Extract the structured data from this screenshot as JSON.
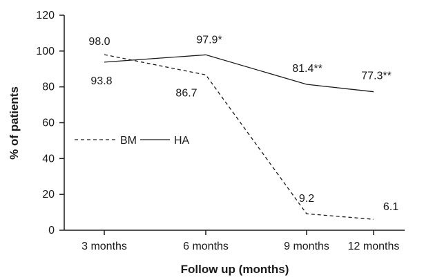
{
  "chart_data": {
    "type": "line",
    "xlabel": "Follow up (months)",
    "ylabel": "% of patients",
    "categories": [
      "3 months",
      "6 months",
      "9 months",
      "12 months"
    ],
    "ylim": [
      0,
      120
    ],
    "yticks": [
      "0",
      "20",
      "40",
      "60",
      "80",
      "100",
      "120"
    ],
    "grid": false,
    "legend": "center-left",
    "series": [
      {
        "name": "BM",
        "style": "dashed",
        "color": "#1a1a1a",
        "values": [
          98.0,
          86.7,
          9.2,
          6.1
        ],
        "labels": [
          "98.0",
          "86.7",
          "9.2",
          "6.1"
        ]
      },
      {
        "name": "HA",
        "style": "solid",
        "color": "#1a1a1a",
        "values": [
          93.8,
          97.9,
          81.4,
          77.3
        ],
        "labels": [
          "93.8",
          "97.9*",
          "81.4**",
          "77.3**"
        ]
      }
    ]
  }
}
